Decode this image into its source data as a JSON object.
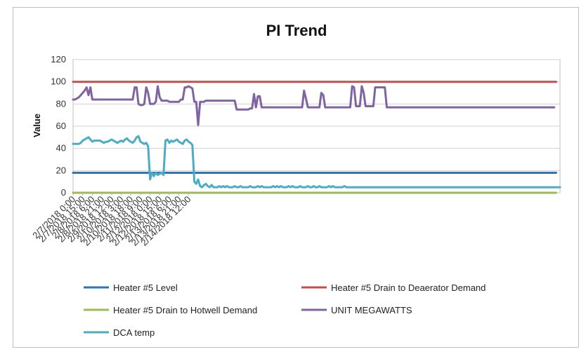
{
  "chart_data": {
    "type": "line",
    "title": "PI Trend",
    "xlabel": "",
    "ylabel": "Value",
    "ylim": [
      0,
      120
    ],
    "yticks": [
      0,
      20,
      40,
      60,
      80,
      100,
      120
    ],
    "grid": "horizontal",
    "legend_position": "bottom",
    "x_tick_labels": [
      "2/7/2018 0:00",
      "2/7/2018 15:00",
      "2/8/2018 6:00",
      "2/8/2018 21:00",
      "2/9/2018 12:00",
      "2/10/2018 3:00",
      "2/10/2018 18:00",
      "2/11/2018 9:00",
      "2/12/2018 0:00",
      "2/12/2018 15:00",
      "2/13/2018 6:00",
      "2/13/2018 21:00",
      "2/14/2018 12:00"
    ],
    "x_step_hours": 3,
    "series": [
      {
        "name": "Heater #5 Level",
        "color": "#2e75b6",
        "values": [
          18,
          18,
          18,
          18,
          18,
          18,
          18,
          18,
          18,
          18,
          18,
          18,
          18,
          18,
          18,
          18,
          18,
          18,
          18,
          18,
          18,
          18,
          18,
          18,
          18,
          18,
          18,
          18,
          18,
          18,
          18,
          18,
          18,
          18,
          18,
          18,
          18,
          18,
          18,
          18,
          18,
          18,
          18,
          18,
          18,
          18,
          18,
          18,
          18,
          18,
          18,
          18,
          18,
          18,
          18,
          18,
          18,
          18,
          18,
          18,
          18,
          18,
          18,
          18,
          18,
          18,
          18,
          18,
          18,
          18,
          18,
          18,
          18,
          18,
          18,
          18,
          18,
          18,
          18,
          18,
          18,
          18,
          18,
          18,
          18,
          18,
          18,
          18,
          18,
          18,
          18,
          18,
          18,
          18,
          18,
          18,
          18,
          18,
          18,
          18,
          18,
          18,
          18,
          18,
          18,
          18,
          18,
          18,
          18,
          18,
          18,
          18,
          18,
          18,
          18,
          18,
          18,
          18,
          18,
          18,
          18,
          18,
          18,
          18,
          18,
          18,
          18,
          18,
          18,
          18,
          18,
          18,
          18,
          18,
          18,
          18,
          18,
          18,
          18,
          18,
          18,
          18,
          18,
          18,
          18,
          18,
          18,
          18,
          18,
          18,
          18,
          18,
          18,
          18,
          18,
          18,
          18,
          18,
          18,
          18,
          18,
          18,
          18,
          18,
          18,
          18,
          18,
          18,
          18,
          18,
          18,
          18,
          18,
          18,
          18,
          18,
          18,
          18,
          18,
          18,
          18,
          18,
          18,
          18,
          18,
          18,
          18,
          18,
          18,
          18,
          18,
          18,
          18,
          18,
          18,
          18,
          18,
          18,
          18,
          18,
          18,
          18,
          18,
          18,
          18,
          18,
          18,
          18,
          18,
          18,
          18,
          18,
          18,
          18,
          18,
          18,
          18,
          18,
          18,
          18,
          18,
          18,
          18,
          18,
          18,
          18,
          18,
          18,
          18,
          18,
          18,
          18,
          18,
          18,
          18,
          18,
          18,
          18,
          18,
          18,
          18,
          18,
          18,
          18,
          18,
          18,
          18,
          18,
          18,
          18,
          18,
          18
        ]
      },
      {
        "name": "Heater #5 Drain to Deaerator Demand",
        "color": "#c0504d",
        "values": [
          100,
          100,
          100,
          100,
          100,
          100,
          100,
          100,
          100,
          100,
          100,
          100,
          100,
          100,
          100,
          100,
          100,
          100,
          100,
          100,
          100,
          100,
          100,
          100,
          100,
          100,
          100,
          100,
          100,
          100,
          100,
          100,
          100,
          100,
          100,
          100,
          100,
          100,
          100,
          100,
          100,
          100,
          100,
          100,
          100,
          100,
          100,
          100,
          100,
          100,
          100,
          100,
          100,
          100,
          100,
          100,
          100,
          100,
          100,
          100,
          100,
          100,
          100,
          100,
          100,
          100,
          100,
          100,
          100,
          100,
          100,
          100,
          100,
          100,
          100,
          100,
          100,
          100,
          100,
          100,
          100,
          100,
          100,
          100,
          100,
          100,
          100,
          100,
          100,
          100,
          100,
          100,
          100,
          100,
          100,
          100,
          100,
          100,
          100,
          100,
          100,
          100,
          100,
          100,
          100,
          100,
          100,
          100,
          100,
          100,
          100,
          100,
          100,
          100,
          100,
          100,
          100,
          100,
          100,
          100,
          100,
          100,
          100,
          100,
          100,
          100,
          100,
          100,
          100,
          100,
          100,
          100,
          100,
          100,
          100,
          100,
          100,
          100,
          100,
          100,
          100,
          100,
          100,
          100,
          100,
          100,
          100,
          100,
          100,
          100,
          100,
          100,
          100,
          100,
          100,
          100,
          100,
          100,
          100,
          100,
          100,
          100,
          100,
          100,
          100,
          100,
          100,
          100,
          100,
          100,
          100,
          100,
          100,
          100,
          100,
          100,
          100,
          100,
          100,
          100,
          100,
          100,
          100,
          100,
          100,
          100,
          100,
          100,
          100,
          100,
          100,
          100,
          100,
          100,
          100,
          100,
          100,
          100,
          100,
          100,
          100,
          100,
          100,
          100,
          100,
          100,
          100,
          100,
          100,
          100,
          100,
          100,
          100,
          100,
          100,
          100,
          100,
          100,
          100,
          100,
          100,
          100,
          100,
          100,
          100,
          100,
          100,
          100,
          100,
          100,
          100,
          100,
          100,
          100,
          100,
          100,
          100,
          100,
          100,
          100,
          100,
          100,
          100,
          100,
          100,
          100,
          100,
          100,
          100,
          100,
          100,
          100
        ]
      },
      {
        "name": "Heater #5 Drain to Hotwell Demand",
        "color": "#9bbb59",
        "values": [
          0,
          0,
          0,
          0,
          0,
          0,
          0,
          0,
          0,
          0,
          0,
          0,
          0,
          0,
          0,
          0,
          0,
          0,
          0,
          0,
          0,
          0,
          0,
          0,
          0,
          0,
          0,
          0,
          0,
          0,
          0,
          0,
          0,
          0,
          0,
          0,
          0,
          0,
          0,
          0,
          0,
          0,
          0,
          0,
          0,
          0,
          0,
          0,
          0,
          0,
          0,
          0,
          0,
          0,
          0,
          0,
          0,
          0,
          0,
          0,
          0,
          0,
          0,
          0,
          0,
          0,
          0,
          0,
          0,
          0,
          0,
          0,
          0,
          0,
          0,
          0,
          0,
          0,
          0,
          0,
          0,
          0,
          0,
          0,
          0,
          0,
          0,
          0,
          0,
          0,
          0,
          0,
          0,
          0,
          0,
          0,
          0,
          0,
          0,
          0,
          0,
          0,
          0,
          0,
          0,
          0,
          0,
          0,
          0,
          0,
          0,
          0,
          0,
          0,
          0,
          0,
          0,
          0,
          0,
          0,
          0,
          0,
          0,
          0,
          0,
          0,
          0,
          0,
          0,
          0,
          0,
          0,
          0,
          0,
          0,
          0,
          0,
          0,
          0,
          0,
          0,
          0,
          0,
          0,
          0,
          0,
          0,
          0,
          0,
          0,
          0,
          0,
          0,
          0,
          0,
          0,
          0,
          0,
          0,
          0,
          0,
          0,
          0,
          0,
          0,
          0,
          0,
          0,
          0,
          0,
          0,
          0,
          0,
          0,
          0,
          0,
          0,
          0,
          0,
          0,
          0,
          0,
          0,
          0,
          0,
          0,
          0,
          0,
          0,
          0,
          0,
          0,
          0,
          0,
          0,
          0,
          0,
          0,
          0,
          0,
          0,
          0,
          0,
          0,
          0,
          0,
          0,
          0,
          0,
          0,
          0,
          0,
          0,
          0,
          0,
          0,
          0,
          0,
          0,
          0,
          0,
          0,
          0,
          0,
          0,
          0,
          0,
          0,
          0,
          0,
          0,
          0,
          0,
          0,
          0,
          0,
          0,
          0,
          0,
          0,
          0,
          0,
          0,
          0,
          0,
          0,
          0,
          0,
          0,
          0,
          0,
          0
        ]
      },
      {
        "name": "UNIT MEGAWATTS",
        "color": "#8064a2",
        "values": [
          84,
          84,
          85,
          86,
          88,
          90,
          92,
          95,
          88,
          95,
          84,
          84,
          84,
          84,
          84,
          84,
          84,
          84,
          84,
          84,
          84,
          84,
          84,
          84,
          84,
          84,
          84,
          84,
          84,
          84,
          84,
          84,
          95,
          95,
          80,
          79,
          79,
          80,
          95,
          90,
          80,
          80,
          80,
          82,
          96,
          86,
          83,
          83,
          83,
          83,
          82,
          82,
          82,
          82,
          82,
          82,
          84,
          84,
          95,
          95,
          96,
          95,
          94,
          82,
          82,
          61,
          82,
          82,
          82,
          83,
          83,
          83,
          83,
          83,
          83,
          83,
          83,
          83,
          83,
          83,
          83,
          83,
          83,
          83,
          83,
          75,
          75,
          75,
          75,
          75,
          75,
          75,
          76,
          76,
          89,
          77,
          87,
          87,
          77,
          77,
          77,
          77,
          77,
          77,
          77,
          77,
          77,
          77,
          77,
          77,
          77,
          77,
          77,
          77,
          77,
          77,
          77,
          77,
          77,
          77,
          92,
          85,
          77,
          77,
          77,
          77,
          77,
          77,
          77,
          90,
          88,
          77,
          77,
          77,
          77,
          77,
          77,
          77,
          77,
          77,
          77,
          77,
          77,
          77,
          77,
          96,
          95,
          78,
          78,
          78,
          96,
          90,
          78,
          78,
          78,
          78,
          78,
          95,
          95,
          95,
          95,
          95,
          95,
          77,
          77,
          77,
          77,
          77,
          77,
          77,
          77,
          77,
          77,
          77,
          77,
          77,
          77,
          77,
          77,
          77,
          77,
          77,
          77,
          77,
          77,
          77,
          77,
          77,
          77,
          77,
          77,
          77,
          77,
          77,
          77,
          77,
          77,
          77,
          77,
          77,
          77,
          77,
          77,
          77,
          77,
          77,
          77,
          77,
          77,
          77,
          77,
          77,
          77,
          77,
          77,
          77,
          77,
          77,
          77,
          77,
          77,
          77,
          77,
          77,
          77,
          77,
          77,
          77,
          77,
          77,
          77,
          77,
          77,
          77,
          77,
          77,
          77,
          77,
          77,
          77,
          77,
          77,
          77,
          77,
          77,
          77,
          77,
          77,
          77,
          77,
          77
        ]
      },
      {
        "name": "DCA temp",
        "color": "#4bacc6",
        "values": [
          44,
          44,
          44,
          44,
          45,
          47,
          48,
          49,
          50,
          48,
          46,
          47,
          47,
          47,
          47,
          46,
          45,
          46,
          46,
          47,
          48,
          47,
          46,
          45,
          46,
          47,
          46,
          48,
          49,
          47,
          46,
          45,
          47,
          50,
          51,
          46,
          45,
          44,
          45,
          42,
          12,
          18,
          15,
          18,
          16,
          17,
          18,
          16,
          47,
          48,
          45,
          47,
          46,
          47,
          48,
          46,
          45,
          44,
          47,
          48,
          46,
          45,
          43,
          10,
          8,
          12,
          6,
          5,
          7,
          8,
          6,
          5,
          7,
          5,
          5,
          5,
          6,
          5,
          6,
          5,
          6,
          5,
          5,
          5,
          6,
          5,
          5,
          6,
          5,
          5,
          5,
          5,
          6,
          5,
          5,
          5,
          6,
          5,
          6,
          5,
          5,
          5,
          5,
          5,
          6,
          5,
          6,
          5,
          6,
          5,
          5,
          5,
          6,
          5,
          6,
          5,
          5,
          5,
          6,
          5,
          5,
          5,
          6,
          5,
          5,
          6,
          5,
          5,
          6,
          5,
          5,
          5,
          5,
          6,
          5,
          6,
          5,
          5,
          5,
          5,
          5,
          6,
          5,
          5,
          5,
          5,
          5,
          5,
          5,
          5,
          5,
          5,
          5,
          5,
          5,
          5,
          5,
          5,
          5,
          5,
          5,
          5,
          5,
          5,
          5,
          5,
          5,
          5,
          5,
          5,
          5,
          5,
          5,
          5,
          5,
          5,
          5,
          5,
          5,
          5,
          5,
          5,
          5,
          5,
          5,
          5,
          5,
          5,
          5,
          5,
          5,
          5,
          5,
          5,
          5,
          5,
          5,
          5,
          5,
          5,
          5,
          5,
          5,
          5,
          5,
          5,
          5,
          5,
          5,
          5,
          5,
          5,
          5,
          5,
          5,
          5,
          5,
          5,
          5,
          5,
          5,
          5,
          5,
          5,
          5,
          5,
          5,
          5,
          5,
          5,
          5,
          5,
          5,
          5,
          5,
          5,
          5,
          5,
          5,
          5,
          5,
          5,
          5,
          5,
          5,
          5,
          5,
          5,
          5,
          5,
          5,
          5,
          5,
          5
        ]
      }
    ]
  }
}
